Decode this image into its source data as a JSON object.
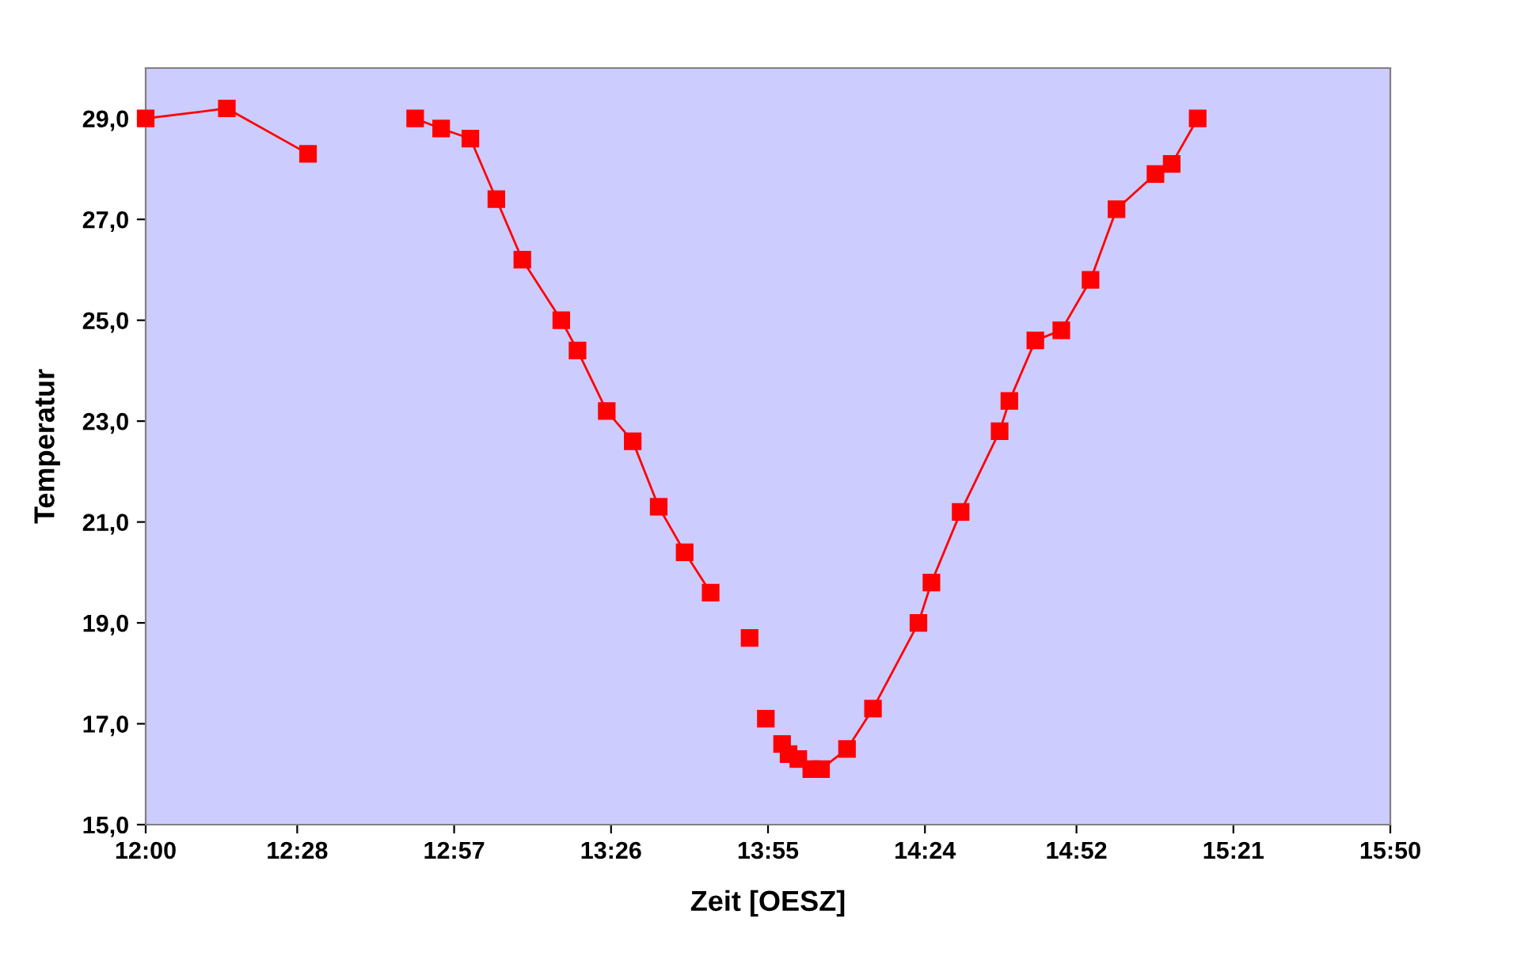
{
  "chart_data": {
    "type": "line",
    "xlabel": "Zeit [OESZ]",
    "ylabel": "Temperatur",
    "x": [
      12.0,
      12.25,
      12.5,
      12.65,
      12.83,
      12.91,
      13.0,
      13.08,
      13.16,
      13.28,
      13.33,
      13.42,
      13.5,
      13.58,
      13.66,
      13.74,
      13.8,
      13.86,
      13.885,
      13.91,
      13.94,
      13.96,
      13.98,
      14.01,
      14.05,
      14.08,
      14.16,
      14.24,
      14.38,
      14.42,
      14.51,
      14.63,
      14.66,
      14.74,
      14.82,
      14.91,
      14.99,
      15.11,
      15.16,
      15.24
    ],
    "series": [
      {
        "color": "#ff0000",
        "values": [
          29.0,
          29.2,
          28.3,
          null,
          29.0,
          28.8,
          28.6,
          27.4,
          26.2,
          25.0,
          24.4,
          23.2,
          22.6,
          21.3,
          20.4,
          19.6,
          null,
          18.7,
          null,
          17.1,
          null,
          16.6,
          16.4,
          16.3,
          16.1,
          16.1,
          16.5,
          17.3,
          19.0,
          19.8,
          21.2,
          22.8,
          23.4,
          24.6,
          24.8,
          25.8,
          27.2,
          27.9,
          28.1,
          29.0
        ]
      }
    ],
    "marker": "square",
    "line_style": "solid",
    "grid": false,
    "legend": false,
    "xlim": [
      12.0,
      15.8333
    ],
    "xticks": [
      {
        "value": 12.0,
        "label": "12:00"
      },
      {
        "value": 12.4667,
        "label": "12:28"
      },
      {
        "value": 12.95,
        "label": "12:57"
      },
      {
        "value": 13.4333,
        "label": "13:26"
      },
      {
        "value": 13.9167,
        "label": "13:55"
      },
      {
        "value": 14.4,
        "label": "14:24"
      },
      {
        "value": 14.8667,
        "label": "14:52"
      },
      {
        "value": 15.35,
        "label": "15:21"
      },
      {
        "value": 15.8333,
        "label": "15:50"
      }
    ],
    "ylim": [
      15.0,
      30.0
    ],
    "yticks": [
      {
        "value": 15,
        "label": "15,0"
      },
      {
        "value": 17,
        "label": "17,0"
      },
      {
        "value": 19,
        "label": "19,0"
      },
      {
        "value": 21,
        "label": "21,0"
      },
      {
        "value": 23,
        "label": "23,0"
      },
      {
        "value": 25,
        "label": "25,0"
      },
      {
        "value": 27,
        "label": "27,0"
      },
      {
        "value": 29,
        "label": "29,0"
      }
    ]
  }
}
